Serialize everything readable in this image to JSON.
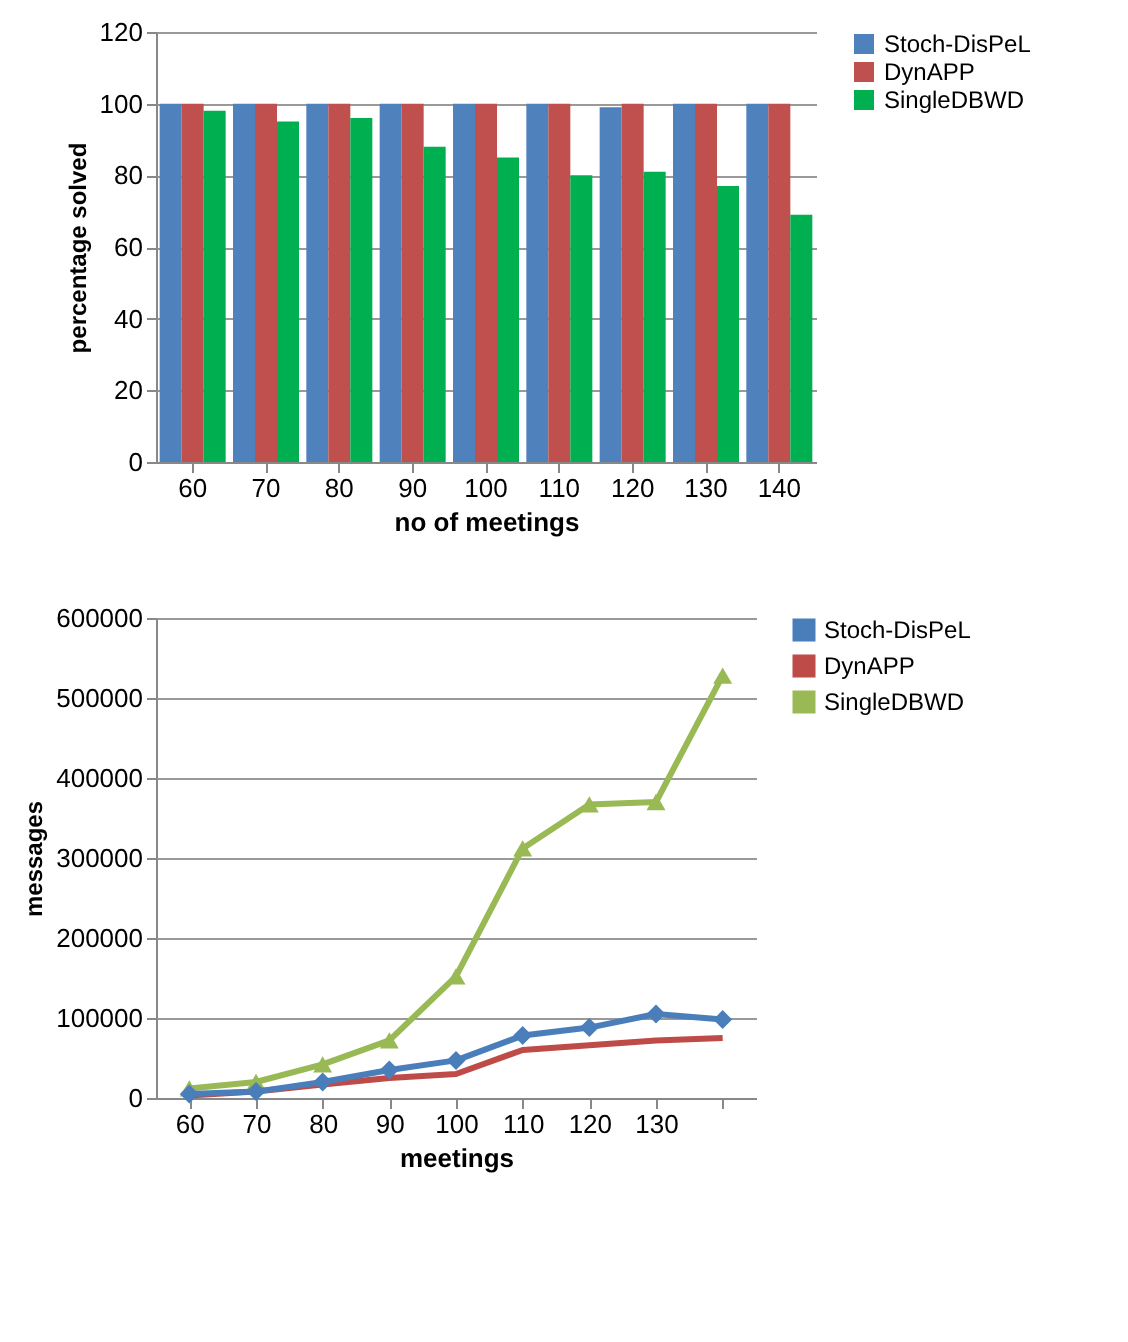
{
  "chart_data": [
    {
      "type": "bar",
      "xlabel": "no of meetings",
      "ylabel": "percentage solved",
      "categories": [
        "60",
        "70",
        "80",
        "90",
        "100",
        "110",
        "120",
        "130",
        "140"
      ],
      "series": [
        {
          "name": "Stoch-DisPeL",
          "color": "#4f81bd",
          "values": [
            100,
            100,
            100,
            100,
            100,
            100,
            99,
            100,
            100
          ]
        },
        {
          "name": "DynAPP",
          "color": "#c0504d",
          "values": [
            100,
            100,
            100,
            100,
            100,
            100,
            100,
            100,
            100
          ]
        },
        {
          "name": "SingleDBWD",
          "color": "#00b050",
          "values": [
            98,
            95,
            96,
            88,
            85,
            80,
            81,
            77,
            69
          ]
        }
      ],
      "ylim": [
        0,
        120
      ],
      "yticks": [
        0,
        20,
        40,
        60,
        80,
        100,
        120
      ],
      "grid": "y",
      "legend": "right"
    },
    {
      "type": "line",
      "xlabel": "meetings",
      "ylabel": "messages",
      "categories": [
        "60",
        "70",
        "80",
        "90",
        "100",
        "110",
        "120",
        "130",
        null
      ],
      "series": [
        {
          "name": "Stoch-DisPeL",
          "color": "#4a7ebb",
          "marker": "diamond",
          "values": [
            5000,
            8000,
            20000,
            35000,
            47000,
            78000,
            88000,
            105000,
            98000
          ]
        },
        {
          "name": "DynAPP",
          "color": "#be4b48",
          "marker": "none",
          "values": [
            3000,
            8000,
            17000,
            25000,
            30000,
            60000,
            66000,
            72000,
            75000
          ]
        },
        {
          "name": "SingleDBWD",
          "color": "#98b954",
          "marker": "triangle",
          "values": [
            12000,
            20000,
            42000,
            72000,
            152000,
            312000,
            367000,
            370000,
            528000
          ]
        }
      ],
      "ylim": [
        0,
        600000
      ],
      "yticks": [
        0,
        100000,
        200000,
        300000,
        400000,
        500000,
        600000
      ],
      "grid": "y",
      "legend": "right"
    }
  ]
}
